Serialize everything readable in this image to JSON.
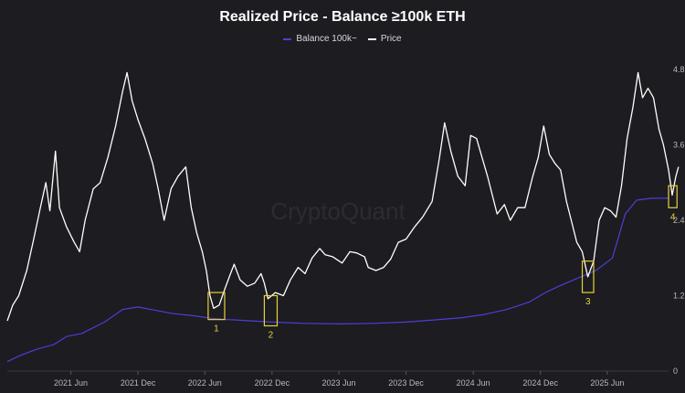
{
  "chart_data": {
    "type": "line",
    "title": "Realized Price - Balance ≥100k ETH",
    "watermark": "CryptoQuant",
    "x_domain": [
      "2020-12-10",
      "2025-11-15"
    ],
    "ylim": [
      0,
      4.8
    ],
    "yticks": [
      0,
      1.2,
      2.4,
      3.6,
      4.8
    ],
    "ytick_labels": [
      "0",
      "1.2",
      "2.4",
      "3.6",
      "4.8"
    ],
    "xticks": [
      {
        "date": "2021-06-01",
        "label": "2021 Jun"
      },
      {
        "date": "2021-12-01",
        "label": "2021 Dec"
      },
      {
        "date": "2022-06-01",
        "label": "2022 Jun"
      },
      {
        "date": "2022-12-01",
        "label": "2022 Dec"
      },
      {
        "date": "2023-06-01",
        "label": "2023 Jun"
      },
      {
        "date": "2023-12-01",
        "label": "2023 Dec"
      },
      {
        "date": "2024-06-01",
        "label": "2024 Jun"
      },
      {
        "date": "2024-12-01",
        "label": "2024 Dec"
      },
      {
        "date": "2025-06-01",
        "label": "2025 Jun"
      }
    ],
    "series": [
      {
        "name": "Balance 100k~",
        "color": "#4b3fd8",
        "points": [
          [
            "2020-12-10",
            0.15
          ],
          [
            "2021-01-15",
            0.25
          ],
          [
            "2021-03-01",
            0.35
          ],
          [
            "2021-04-15",
            0.42
          ],
          [
            "2021-05-20",
            0.55
          ],
          [
            "2021-07-01",
            0.6
          ],
          [
            "2021-09-01",
            0.78
          ],
          [
            "2021-10-20",
            0.98
          ],
          [
            "2021-12-01",
            1.02
          ],
          [
            "2022-01-15",
            0.97
          ],
          [
            "2022-03-01",
            0.92
          ],
          [
            "2022-05-01",
            0.88
          ],
          [
            "2022-06-20",
            0.84
          ],
          [
            "2022-08-01",
            0.82
          ],
          [
            "2022-10-01",
            0.8
          ],
          [
            "2022-12-01",
            0.78
          ],
          [
            "2023-03-01",
            0.76
          ],
          [
            "2023-06-01",
            0.75
          ],
          [
            "2023-09-01",
            0.76
          ],
          [
            "2023-12-01",
            0.78
          ],
          [
            "2024-03-01",
            0.82
          ],
          [
            "2024-05-01",
            0.85
          ],
          [
            "2024-07-01",
            0.9
          ],
          [
            "2024-09-01",
            0.98
          ],
          [
            "2024-11-01",
            1.1
          ],
          [
            "2024-12-15",
            1.25
          ],
          [
            "2025-01-20",
            1.35
          ],
          [
            "2025-03-01",
            1.45
          ],
          [
            "2025-05-01",
            1.6
          ],
          [
            "2025-06-15",
            1.8
          ],
          [
            "2025-07-20",
            2.5
          ],
          [
            "2025-08-20",
            2.72
          ],
          [
            "2025-10-01",
            2.75
          ],
          [
            "2025-11-15",
            2.75
          ]
        ]
      },
      {
        "name": "Price",
        "color": "#ffffff",
        "points": [
          [
            "2020-12-10",
            0.8
          ],
          [
            "2020-12-25",
            1.05
          ],
          [
            "2021-01-10",
            1.2
          ],
          [
            "2021-02-01",
            1.6
          ],
          [
            "2021-02-20",
            2.1
          ],
          [
            "2021-03-10",
            2.6
          ],
          [
            "2021-03-25",
            3.0
          ],
          [
            "2021-04-05",
            2.55
          ],
          [
            "2021-04-20",
            3.5
          ],
          [
            "2021-05-01",
            2.6
          ],
          [
            "2021-05-20",
            2.3
          ],
          [
            "2021-06-10",
            2.05
          ],
          [
            "2021-06-25",
            1.9
          ],
          [
            "2021-07-10",
            2.4
          ],
          [
            "2021-08-01",
            2.9
          ],
          [
            "2021-08-20",
            3.0
          ],
          [
            "2021-09-10",
            3.4
          ],
          [
            "2021-10-01",
            3.9
          ],
          [
            "2021-10-20",
            4.45
          ],
          [
            "2021-11-01",
            4.75
          ],
          [
            "2021-11-15",
            4.3
          ],
          [
            "2021-12-01",
            4.0
          ],
          [
            "2021-12-20",
            3.7
          ],
          [
            "2022-01-10",
            3.3
          ],
          [
            "2022-01-25",
            2.9
          ],
          [
            "2022-02-10",
            2.4
          ],
          [
            "2022-03-01",
            2.9
          ],
          [
            "2022-03-20",
            3.1
          ],
          [
            "2022-04-10",
            3.25
          ],
          [
            "2022-04-25",
            2.6
          ],
          [
            "2022-05-10",
            2.2
          ],
          [
            "2022-05-25",
            1.9
          ],
          [
            "2022-06-05",
            1.6
          ],
          [
            "2022-06-15",
            1.2
          ],
          [
            "2022-06-25",
            1.0
          ],
          [
            "2022-07-10",
            1.05
          ],
          [
            "2022-07-25",
            1.3
          ],
          [
            "2022-08-10",
            1.55
          ],
          [
            "2022-08-20",
            1.7
          ],
          [
            "2022-09-05",
            1.45
          ],
          [
            "2022-09-25",
            1.35
          ],
          [
            "2022-10-15",
            1.4
          ],
          [
            "2022-11-01",
            1.55
          ],
          [
            "2022-11-10",
            1.4
          ],
          [
            "2022-11-20",
            1.15
          ],
          [
            "2022-12-10",
            1.25
          ],
          [
            "2023-01-01",
            1.2
          ],
          [
            "2023-01-20",
            1.45
          ],
          [
            "2023-02-10",
            1.65
          ],
          [
            "2023-03-01",
            1.55
          ],
          [
            "2023-03-20",
            1.8
          ],
          [
            "2023-04-10",
            1.95
          ],
          [
            "2023-04-25",
            1.85
          ],
          [
            "2023-05-15",
            1.82
          ],
          [
            "2023-06-10",
            1.72
          ],
          [
            "2023-07-01",
            1.9
          ],
          [
            "2023-07-20",
            1.88
          ],
          [
            "2023-08-10",
            1.82
          ],
          [
            "2023-08-20",
            1.65
          ],
          [
            "2023-09-10",
            1.6
          ],
          [
            "2023-10-01",
            1.65
          ],
          [
            "2023-10-20",
            1.78
          ],
          [
            "2023-11-10",
            2.05
          ],
          [
            "2023-12-01",
            2.1
          ],
          [
            "2023-12-25",
            2.3
          ],
          [
            "2024-01-15",
            2.45
          ],
          [
            "2024-02-10",
            2.7
          ],
          [
            "2024-03-01",
            3.4
          ],
          [
            "2024-03-15",
            3.95
          ],
          [
            "2024-04-01",
            3.5
          ],
          [
            "2024-04-20",
            3.1
          ],
          [
            "2024-05-10",
            2.95
          ],
          [
            "2024-05-25",
            3.75
          ],
          [
            "2024-06-10",
            3.7
          ],
          [
            "2024-06-25",
            3.4
          ],
          [
            "2024-07-10",
            3.1
          ],
          [
            "2024-08-05",
            2.5
          ],
          [
            "2024-08-25",
            2.65
          ],
          [
            "2024-09-10",
            2.4
          ],
          [
            "2024-09-30",
            2.6
          ],
          [
            "2024-10-20",
            2.6
          ],
          [
            "2024-11-10",
            3.1
          ],
          [
            "2024-11-25",
            3.4
          ],
          [
            "2024-12-10",
            3.9
          ],
          [
            "2024-12-25",
            3.45
          ],
          [
            "2025-01-10",
            3.3
          ],
          [
            "2025-01-25",
            3.2
          ],
          [
            "2025-02-10",
            2.7
          ],
          [
            "2025-02-25",
            2.35
          ],
          [
            "2025-03-10",
            2.05
          ],
          [
            "2025-03-25",
            1.9
          ],
          [
            "2025-04-09",
            1.5
          ],
          [
            "2025-04-25",
            1.75
          ],
          [
            "2025-05-10",
            2.4
          ],
          [
            "2025-05-25",
            2.6
          ],
          [
            "2025-06-10",
            2.55
          ],
          [
            "2025-06-25",
            2.45
          ],
          [
            "2025-07-10",
            2.95
          ],
          [
            "2025-07-25",
            3.7
          ],
          [
            "2025-08-10",
            4.2
          ],
          [
            "2025-08-24",
            4.75
          ],
          [
            "2025-09-05",
            4.35
          ],
          [
            "2025-09-20",
            4.5
          ],
          [
            "2025-10-05",
            4.35
          ],
          [
            "2025-10-20",
            3.85
          ],
          [
            "2025-11-01",
            3.6
          ],
          [
            "2025-11-15",
            3.2
          ],
          [
            "2025-11-25",
            2.8
          ],
          [
            "2025-12-05",
            3.1
          ],
          [
            "2025-12-12",
            3.25
          ]
        ]
      }
    ],
    "annotations": [
      {
        "label": "1",
        "x_start": "2022-06-10",
        "x_end": "2022-07-25",
        "y_low": 0.82,
        "y_high": 1.25,
        "color": "#e6d23a"
      },
      {
        "label": "2",
        "x_start": "2022-11-10",
        "x_end": "2022-12-15",
        "y_low": 0.72,
        "y_high": 1.2,
        "color": "#e6d23a"
      },
      {
        "label": "3",
        "x_start": "2025-03-25",
        "x_end": "2025-04-25",
        "y_low": 1.25,
        "y_high": 1.75,
        "color": "#e6d23a"
      },
      {
        "label": "4",
        "x_start": "2025-11-15",
        "x_end": "2025-12-08",
        "y_low": 2.6,
        "y_high": 2.95,
        "color": "#e6d23a"
      }
    ],
    "grid": false,
    "legend_position": "top-center"
  }
}
